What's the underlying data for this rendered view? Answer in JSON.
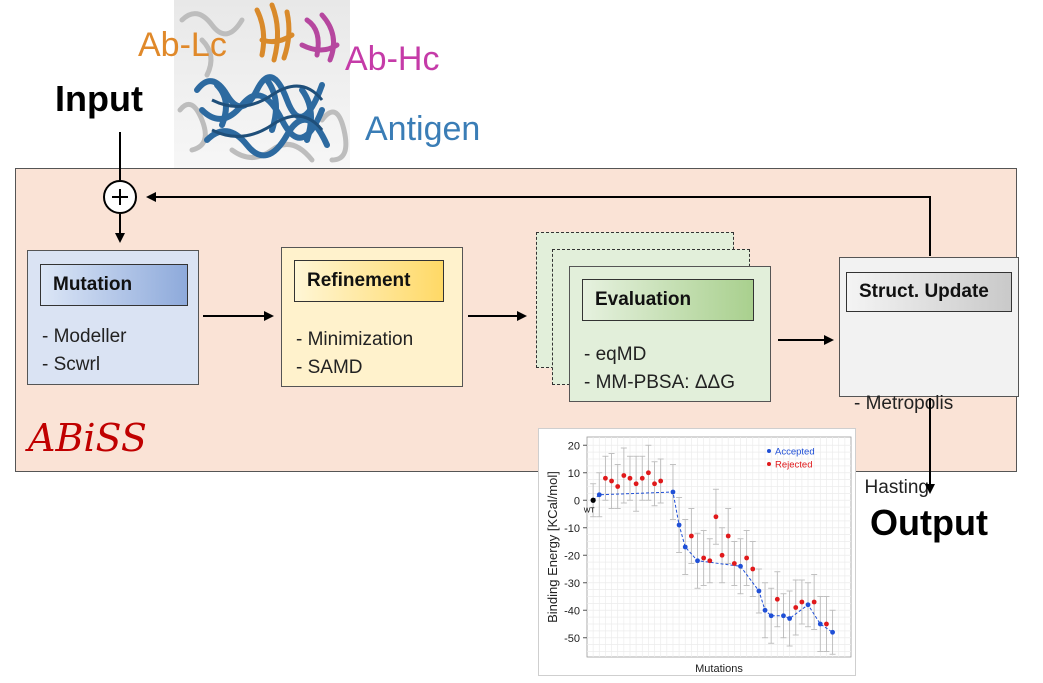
{
  "labels": {
    "input": "Input",
    "output": "Output",
    "ab_lc": "Ab-Lc",
    "ab_hc": "Ab-Hc",
    "antigen": "Antigen",
    "abiss": "ABiSS"
  },
  "colors": {
    "panel_bg": "#fae3d6",
    "ab_lc": "#e0892a",
    "ab_hc": "#c53ba8",
    "antigen": "#3a7db6",
    "logo": "#c00000",
    "accepted": "#1f4fd6",
    "rejected": "#e0191b"
  },
  "icons": {
    "junction": "plus-circle-icon",
    "protein": "protein-structure-image"
  },
  "steps": {
    "mutation": {
      "title": "Mutation",
      "items": [
        "- Modeller",
        "- Scwrl"
      ]
    },
    "refinement": {
      "title": "Refinement",
      "items": [
        "- Minimization",
        "- SAMD"
      ]
    },
    "evaluation": {
      "title": "Evaluation",
      "items": [
        "- eqMD",
        "- MM-PBSA: ΔΔG"
      ]
    },
    "update": {
      "title": "Struct. Update",
      "items": [
        "- Metropolis",
        "  Hasting"
      ]
    }
  },
  "chart_data": {
    "type": "scatter",
    "xlabel": "Mutations",
    "ylabel": "Binding Energy [KCal/mol]",
    "ylim": [
      -57,
      23
    ],
    "yticks": [
      20,
      10,
      0,
      -10,
      -20,
      -30,
      -40,
      -50
    ],
    "xlim": [
      0,
      43
    ],
    "grid": true,
    "legend_position": "top-right",
    "annotations": [
      {
        "text": "WT",
        "x": 1,
        "y": 0
      }
    ],
    "wt": {
      "x": 1,
      "y": 0
    },
    "series": [
      {
        "name": "Accepted",
        "x": [
          1,
          2,
          14,
          15,
          16,
          18,
          25,
          28,
          29,
          30,
          32,
          33,
          36,
          38,
          40
        ],
        "y": [
          0,
          2,
          3,
          -9,
          -17,
          -22,
          -24,
          -33,
          -40,
          -42,
          -42,
          -43,
          -38,
          -45,
          -48
        ],
        "err": [
          6,
          8,
          10,
          10,
          10,
          10,
          10,
          8,
          10,
          10,
          8,
          10,
          8,
          10,
          8
        ]
      },
      {
        "name": "Rejected",
        "x": [
          3,
          4,
          5,
          6,
          7,
          8,
          9,
          10,
          11,
          12,
          17,
          19,
          20,
          21,
          22,
          23,
          24,
          26,
          27,
          31,
          34,
          35,
          37,
          39
        ],
        "y": [
          8,
          7,
          5,
          9,
          8,
          6,
          8,
          10,
          6,
          7,
          -13,
          -21,
          -22,
          -6,
          -20,
          -13,
          -23,
          -21,
          -25,
          -36,
          -39,
          -37,
          -37,
          -45
        ],
        "err": [
          8,
          10,
          8,
          10,
          8,
          10,
          8,
          10,
          8,
          8,
          10,
          10,
          8,
          10,
          10,
          10,
          8,
          10,
          10,
          10,
          10,
          8,
          10,
          10
        ]
      }
    ]
  }
}
